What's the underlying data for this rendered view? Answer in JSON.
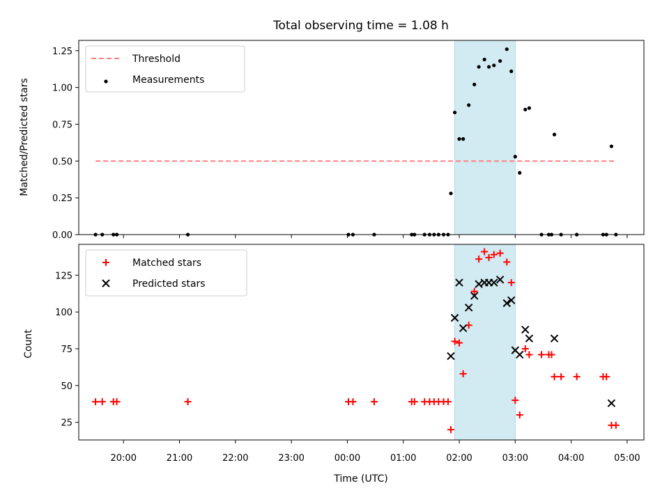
{
  "chart_data": [
    {
      "type": "scatter",
      "title": "Total observing time = 1.08 h",
      "ylabel": "Matched/Predicted stars",
      "xlabel": "",
      "ylim": [
        0,
        1.32
      ],
      "yticks": [
        "0.00",
        "0.25",
        "0.50",
        "0.75",
        "1.00",
        "1.25"
      ],
      "highlight": {
        "x_start": 1.92,
        "x_end": 3.0,
        "color": "#add8e6"
      },
      "legend_position": "top-left",
      "threshold": {
        "name": "Threshold",
        "value": 0.5,
        "x_start": -4.5,
        "x_end": 4.8,
        "color": "#ff7f7f"
      },
      "series": [
        {
          "name": "Measurements",
          "color": "#000000",
          "x": [
            -4.5,
            -4.38,
            -4.18,
            -4.12,
            -2.85,
            0.02,
            0.1,
            0.48,
            1.15,
            1.2,
            1.38,
            1.47,
            1.55,
            1.63,
            1.72,
            1.8,
            1.85,
            1.92,
            2.0,
            2.07,
            2.17,
            2.27,
            2.35,
            2.45,
            2.53,
            2.62,
            2.73,
            2.85,
            2.93,
            3.0,
            3.08,
            3.18,
            3.25,
            3.47,
            3.6,
            3.65,
            3.7,
            3.82,
            4.1,
            4.57,
            4.63,
            4.72,
            4.8
          ],
          "y": [
            0,
            0,
            0,
            0,
            0,
            0,
            0,
            0,
            0,
            0,
            0,
            0,
            0,
            0,
            0,
            0,
            0.28,
            0.83,
            0.65,
            0.65,
            0.88,
            1.02,
            1.14,
            1.19,
            1.14,
            1.15,
            1.18,
            1.26,
            1.11,
            0.53,
            0.42,
            0.85,
            0.86,
            0,
            0,
            0,
            0.68,
            0,
            0,
            0,
            0,
            0.6,
            0
          ]
        }
      ]
    },
    {
      "type": "scatter",
      "xlabel": "Time (UTC)",
      "ylabel": "Count",
      "ylim": [
        13,
        146
      ],
      "yticks": [
        "25",
        "50",
        "75",
        "100",
        "125"
      ],
      "xlim": [
        -4.8,
        5.3
      ],
      "xticks": [
        "20:00",
        "21:00",
        "22:00",
        "23:00",
        "00:00",
        "01:00",
        "02:00",
        "03:00",
        "04:00",
        "05:00"
      ],
      "highlight": {
        "x_start": 1.92,
        "x_end": 3.0,
        "color": "#add8e6"
      },
      "legend_position": "top-left",
      "series": [
        {
          "name": "Matched stars",
          "marker": "plus",
          "color": "#ff0000",
          "x": [
            -4.5,
            -4.38,
            -4.18,
            -4.12,
            -2.85,
            0.02,
            0.1,
            0.48,
            1.15,
            1.2,
            1.38,
            1.47,
            1.55,
            1.63,
            1.72,
            1.8,
            1.85,
            1.92,
            2.0,
            2.07,
            2.17,
            2.27,
            2.35,
            2.45,
            2.53,
            2.62,
            2.73,
            2.85,
            2.93,
            3.0,
            3.08,
            3.18,
            3.25,
            3.47,
            3.6,
            3.65,
            3.7,
            3.82,
            4.1,
            4.57,
            4.63,
            4.72,
            4.8
          ],
          "y": [
            39,
            39,
            39,
            39,
            39,
            39,
            39,
            39,
            39,
            39,
            39,
            39,
            39,
            39,
            39,
            39,
            20,
            80,
            79,
            58,
            91,
            114,
            136,
            141,
            137,
            139,
            140,
            134,
            120,
            40,
            30,
            75,
            71,
            71,
            71,
            71,
            56,
            56,
            56,
            56,
            56,
            23,
            23
          ]
        },
        {
          "name": "Predicted stars",
          "marker": "x",
          "color": "#000000",
          "x": [
            1.85,
            1.92,
            2.0,
            2.07,
            2.17,
            2.27,
            2.35,
            2.45,
            2.53,
            2.62,
            2.73,
            2.85,
            2.93,
            3.0,
            3.08,
            3.18,
            3.25,
            3.7,
            4.72
          ],
          "y": [
            70,
            96,
            120,
            89,
            103,
            111,
            119,
            120,
            120,
            120,
            122,
            106,
            108,
            74,
            71,
            88,
            82,
            82,
            38
          ]
        }
      ]
    }
  ]
}
